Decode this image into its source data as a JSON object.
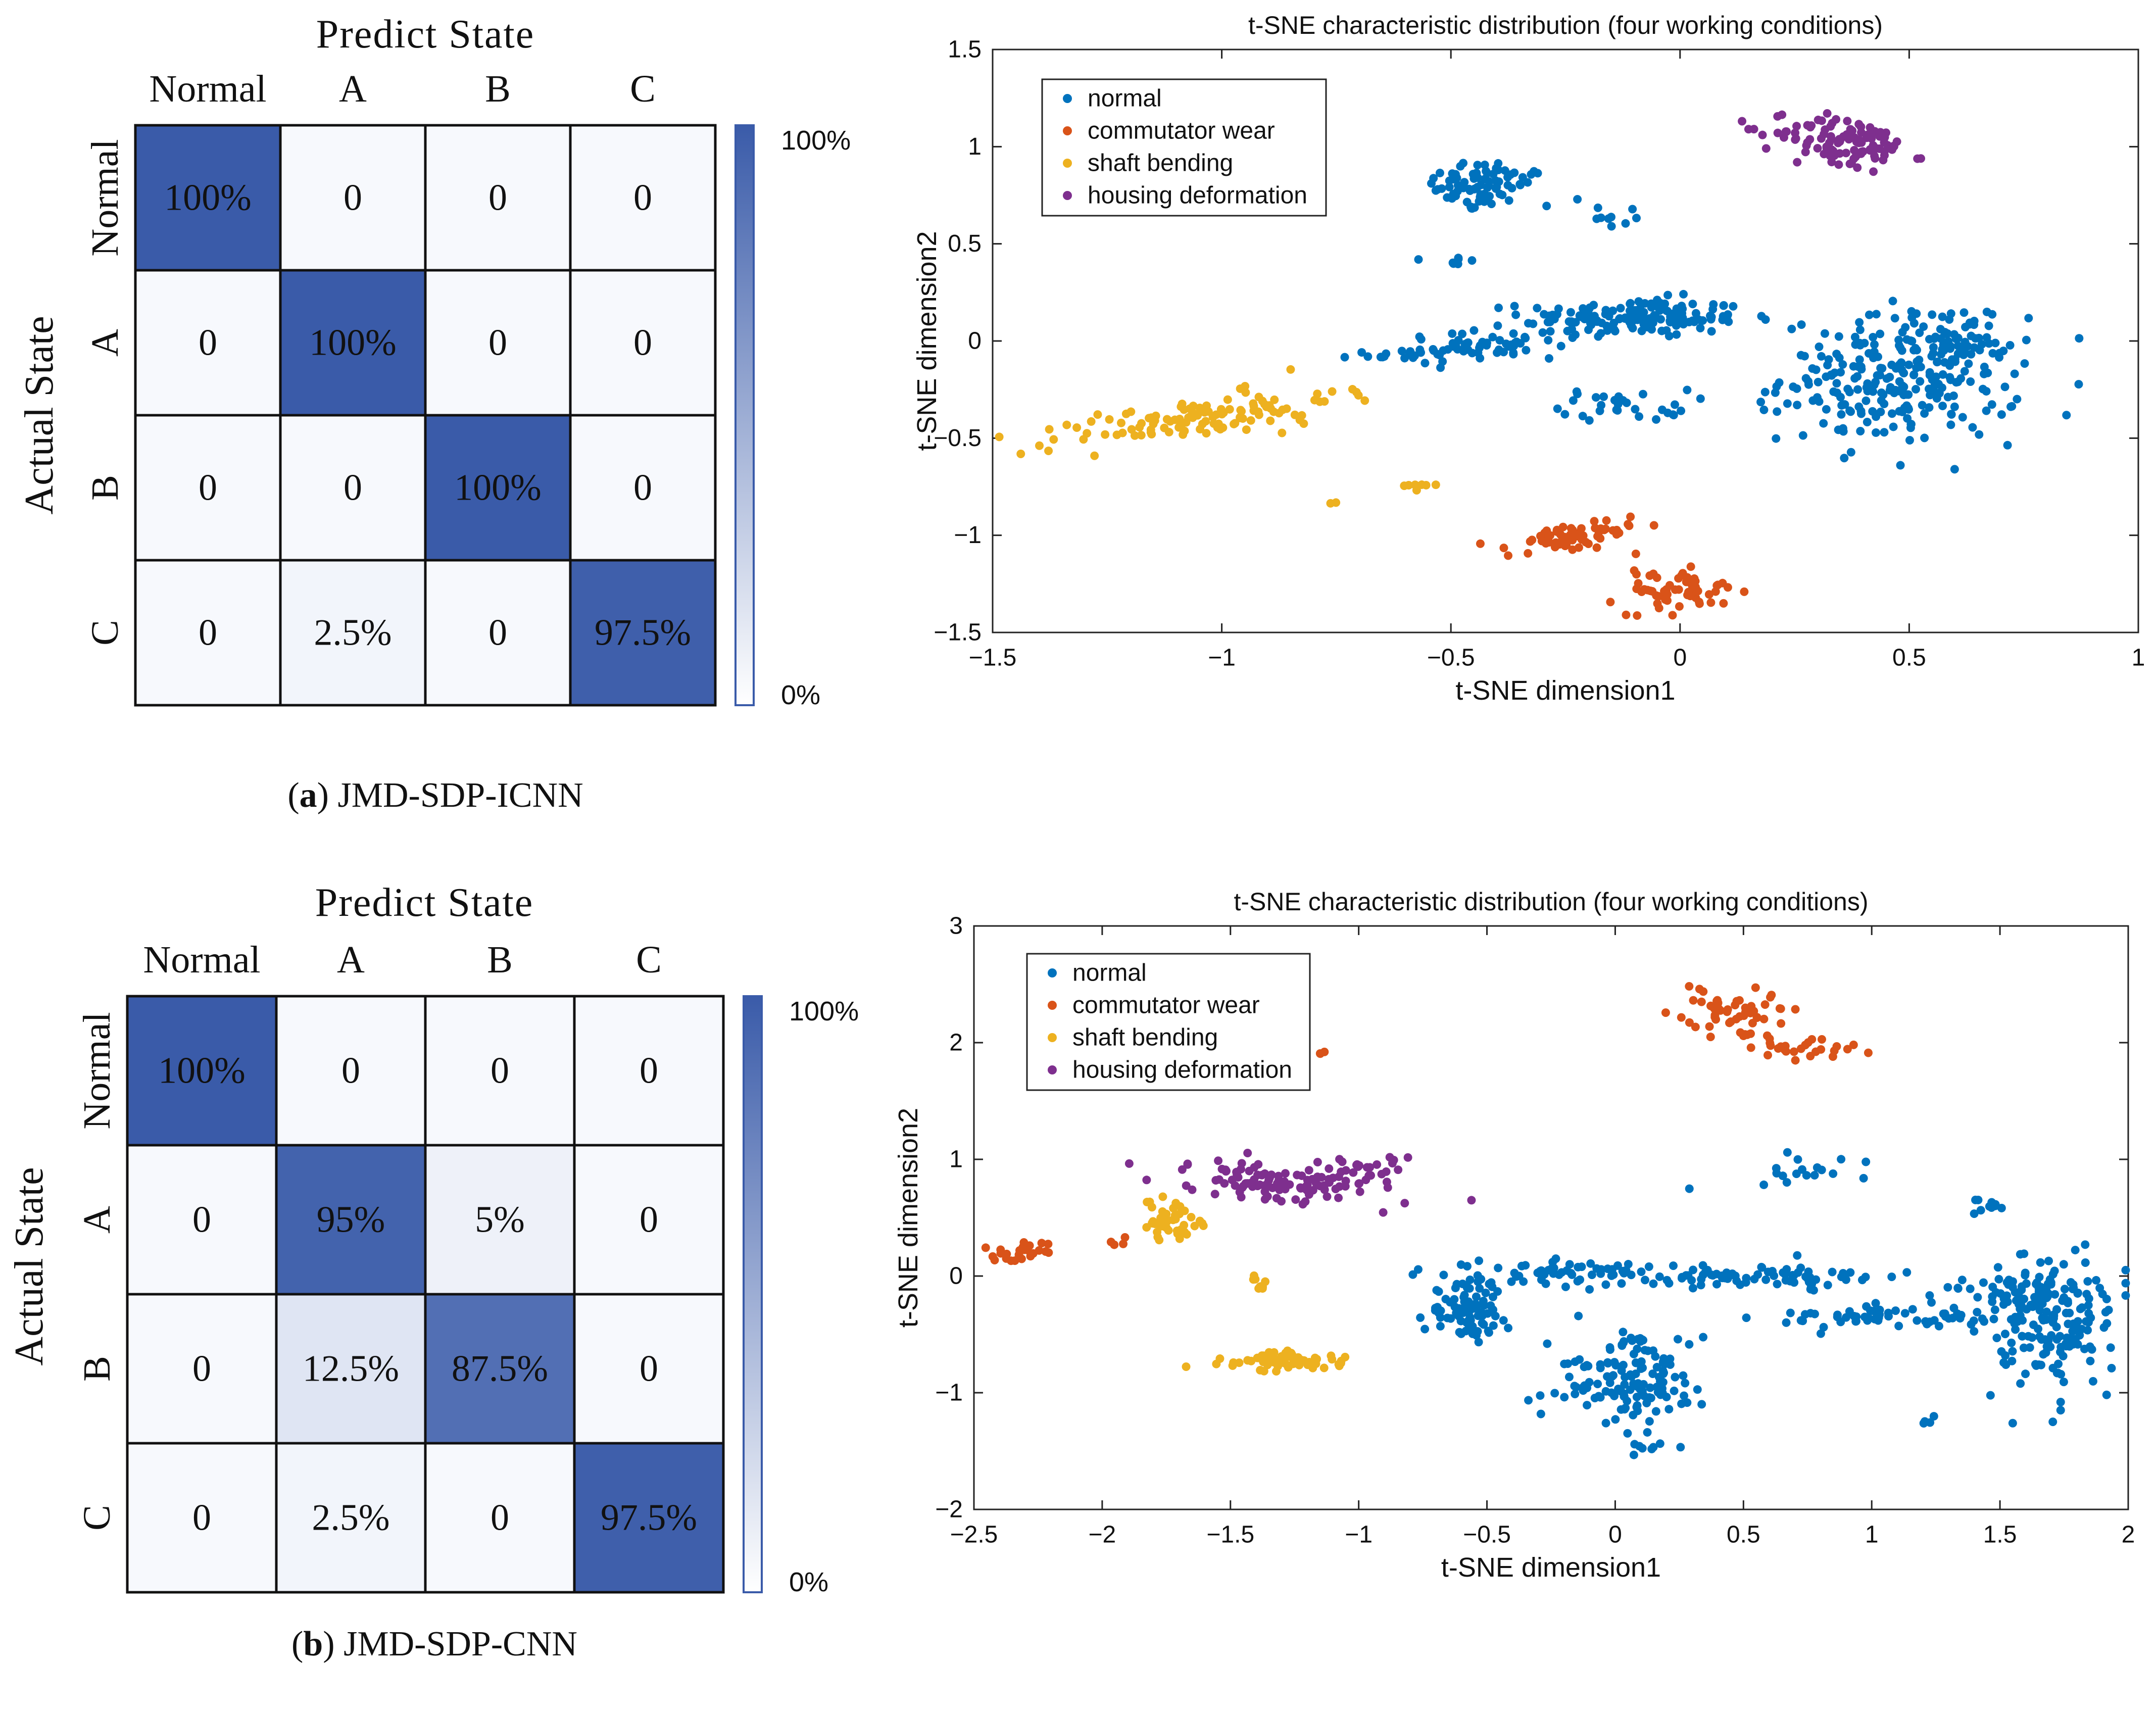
{
  "colors": {
    "normal": "#0072BD",
    "commutator_wear": "#D95319",
    "shaft_bending": "#EDB120",
    "housing_deformation": "#7E2F8E",
    "cm_full": "#3A5BA9",
    "cm_empty": "#F7F9FD"
  },
  "chart_data": [
    {
      "type": "heatmap",
      "title": "Predict State",
      "ylabel": "Actual State",
      "columns": [
        "Normal",
        "A",
        "B",
        "C"
      ],
      "rows": [
        "Normal",
        "A",
        "B",
        "C"
      ],
      "cells": [
        [
          "100%",
          "0",
          "0",
          "0"
        ],
        [
          "0",
          "100%",
          "0",
          "0"
        ],
        [
          "0",
          "0",
          "100%",
          "0"
        ],
        [
          "0",
          "2.5%",
          "0",
          "97.5%"
        ]
      ],
      "values": [
        [
          100,
          0,
          0,
          0
        ],
        [
          0,
          100,
          0,
          0
        ],
        [
          0,
          0,
          100,
          0
        ],
        [
          0,
          2.5,
          0,
          97.5
        ]
      ],
      "colorbar": {
        "max_label": "100%",
        "min_label": "0%"
      },
      "caption": {
        "letter": "a",
        "open": "(",
        "close": ")",
        "text": " JMD-SDP-ICNN"
      }
    },
    {
      "type": "scatter",
      "title": "t-SNE characteristic distribution (four working conditions)",
      "xlabel": "t-SNE dimension1",
      "ylabel": "t-SNE dimension2",
      "xlim": [
        -1.5,
        1
      ],
      "ylim": [
        -1.5,
        1.5
      ],
      "xticks": [
        -1.5,
        -1,
        -0.5,
        0,
        0.5,
        1
      ],
      "xtick_labels": [
        "−1.5",
        "−1",
        "−0.5",
        "0",
        "0.5",
        "1"
      ],
      "yticks": [
        -1.5,
        -1,
        -0.5,
        0,
        0.5,
        1,
        1.5
      ],
      "ytick_labels": [
        "−1.5",
        "−1",
        "−0.5",
        "0",
        "0.5",
        "1",
        "1.5"
      ],
      "legend": "top-left",
      "legend_labels": [
        "normal",
        "commutator wear",
        "shaft bending",
        "housing deformation"
      ],
      "clusters": [
        {
          "series": 0,
          "cx": -0.43,
          "cy": 0.8,
          "sx": 0.06,
          "sy": 0.07,
          "n": 80,
          "rot": -0.35
        },
        {
          "series": 0,
          "cx": -0.15,
          "cy": 0.65,
          "sx": 0.04,
          "sy": 0.03,
          "n": 10,
          "rot": -0.5
        },
        {
          "series": 0,
          "cx": -0.49,
          "cy": 0.41,
          "sx": 0.02,
          "sy": 0.02,
          "n": 8,
          "rot": 0
        },
        {
          "series": 0,
          "cx": -0.1,
          "cy": 0.12,
          "sx": 0.12,
          "sy": 0.05,
          "n": 160,
          "rot": 0
        },
        {
          "series": 0,
          "cx": -0.46,
          "cy": -0.03,
          "sx": 0.11,
          "sy": 0.04,
          "n": 70,
          "rot": 0.2
        },
        {
          "series": 0,
          "cx": -0.12,
          "cy": -0.33,
          "sx": 0.07,
          "sy": 0.04,
          "n": 30,
          "rot": 0
        },
        {
          "series": 0,
          "cx": 0.48,
          "cy": -0.2,
          "sx": 0.13,
          "sy": 0.16,
          "n": 260,
          "rot": 0
        },
        {
          "series": 0,
          "cx": 0.61,
          "cy": 0.02,
          "sx": 0.05,
          "sy": 0.08,
          "n": 40,
          "rot": 0
        },
        {
          "series": 1,
          "cx": -0.24,
          "cy": -1.02,
          "sx": 0.08,
          "sy": 0.04,
          "n": 60,
          "rot": 0.35
        },
        {
          "series": 1,
          "cx": 0.0,
          "cy": -1.28,
          "sx": 0.07,
          "sy": 0.05,
          "n": 60,
          "rot": 0.25
        },
        {
          "series": 2,
          "cx": -1.06,
          "cy": -0.4,
          "sx": 0.17,
          "sy": 0.05,
          "n": 120,
          "rot": 0.33
        },
        {
          "series": 2,
          "cx": -0.57,
          "cy": -0.74,
          "sx": 0.02,
          "sy": 0.02,
          "n": 8,
          "rot": 0
        },
        {
          "series": 2,
          "cx": -0.75,
          "cy": -0.83,
          "sx": 0.01,
          "sy": 0.005,
          "n": 2,
          "rot": 0
        },
        {
          "series": 3,
          "cx": 0.36,
          "cy": 1.02,
          "sx": 0.08,
          "sy": 0.06,
          "n": 110,
          "rot": -0.4
        }
      ]
    },
    {
      "type": "heatmap",
      "title": "Predict State",
      "ylabel": "Actual State",
      "columns": [
        "Normal",
        "A",
        "B",
        "C"
      ],
      "rows": [
        "Normal",
        "A",
        "B",
        "C"
      ],
      "cells": [
        [
          "100%",
          "0",
          "0",
          "0"
        ],
        [
          "0",
          "95%",
          "5%",
          "0"
        ],
        [
          "0",
          "12.5%",
          "87.5%",
          "0"
        ],
        [
          "0",
          "2.5%",
          "0",
          "97.5%"
        ]
      ],
      "values": [
        [
          100,
          0,
          0,
          0
        ],
        [
          0,
          95,
          5,
          0
        ],
        [
          0,
          12.5,
          87.5,
          0
        ],
        [
          0,
          2.5,
          0,
          97.5
        ]
      ],
      "colorbar": {
        "max_label": "100%",
        "min_label": "0%"
      },
      "caption": {
        "letter": "b",
        "open": "(",
        "close": ")",
        "text": " JMD-SDP-CNN"
      }
    },
    {
      "type": "scatter",
      "title": "t-SNE characteristic distribution (four working conditions)",
      "xlabel": "t-SNE dimension1",
      "ylabel": "t-SNE dimension2",
      "xlim": [
        -2.5,
        2
      ],
      "ylim": [
        -2,
        3
      ],
      "xticks": [
        -2.5,
        -2,
        -1.5,
        -1,
        -0.5,
        0,
        0.5,
        1,
        1.5,
        2
      ],
      "xtick_labels": [
        "−2.5",
        "−2",
        "−1.5",
        "−1",
        "−0.5",
        "0",
        "0.5",
        "1",
        "1.5",
        "2"
      ],
      "yticks": [
        -2,
        -1,
        0,
        1,
        2,
        3
      ],
      "ytick_labels": [
        "−2",
        "−1",
        "0",
        "1",
        "2",
        "3"
      ],
      "legend": "top-left",
      "legend_labels": [
        "normal",
        "commutator wear",
        "shaft bending",
        "housing deformation"
      ],
      "clusters": [
        {
          "series": 0,
          "cx": -0.58,
          "cy": -0.3,
          "sx": 0.08,
          "sy": 0.13,
          "n": 90,
          "rot": 0
        },
        {
          "series": 0,
          "cx": -0.2,
          "cy": 0.03,
          "sx": 0.25,
          "sy": 0.06,
          "n": 60,
          "rot": 0
        },
        {
          "series": 0,
          "cx": 0.05,
          "cy": -0.9,
          "sx": 0.15,
          "sy": 0.18,
          "n": 140,
          "rot": 0
        },
        {
          "series": 0,
          "cx": 0.1,
          "cy": -1.47,
          "sx": 0.06,
          "sy": 0.03,
          "n": 8,
          "rot": 0
        },
        {
          "series": 0,
          "cx": 0.55,
          "cy": 0.0,
          "sx": 0.25,
          "sy": 0.05,
          "n": 80,
          "rot": 0
        },
        {
          "series": 0,
          "cx": 1.1,
          "cy": -0.35,
          "sx": 0.25,
          "sy": 0.05,
          "n": 60,
          "rot": 0
        },
        {
          "series": 0,
          "cx": 1.72,
          "cy": -0.4,
          "sx": 0.12,
          "sy": 0.3,
          "n": 170,
          "rot": 0
        },
        {
          "series": 0,
          "cx": 1.6,
          "cy": -0.1,
          "sx": 0.12,
          "sy": 0.06,
          "n": 40,
          "rot": 0
        },
        {
          "series": 0,
          "cx": 0.75,
          "cy": 0.9,
          "sx": 0.18,
          "sy": 0.07,
          "n": 18,
          "rot": 0
        },
        {
          "series": 0,
          "cx": 1.45,
          "cy": 0.58,
          "sx": 0.04,
          "sy": 0.03,
          "n": 10,
          "rot": 0
        },
        {
          "series": 0,
          "cx": 1.23,
          "cy": -1.22,
          "sx": 0.02,
          "sy": 0.03,
          "n": 4,
          "rot": 0
        },
        {
          "series": 1,
          "cx": 0.45,
          "cy": 2.25,
          "sx": 0.12,
          "sy": 0.12,
          "n": 55,
          "rot": -0.4
        },
        {
          "series": 1,
          "cx": 0.75,
          "cy": 1.95,
          "sx": 0.12,
          "sy": 0.05,
          "n": 25,
          "rot": 0
        },
        {
          "series": 1,
          "cx": -2.3,
          "cy": 0.2,
          "sx": 0.07,
          "sy": 0.04,
          "n": 25,
          "rot": 0.25
        },
        {
          "series": 1,
          "cx": -1.95,
          "cy": 0.28,
          "sx": 0.03,
          "sy": 0.02,
          "n": 4,
          "rot": 0
        },
        {
          "series": 1,
          "cx": -1.15,
          "cy": 1.9,
          "sx": 0.01,
          "sy": 0.02,
          "n": 3,
          "rot": 0
        },
        {
          "series": 2,
          "cx": -1.75,
          "cy": 0.47,
          "sx": 0.06,
          "sy": 0.09,
          "n": 45,
          "rot": 0
        },
        {
          "series": 2,
          "cx": -1.4,
          "cy": -0.07,
          "sx": 0.02,
          "sy": 0.03,
          "n": 10,
          "rot": 0
        },
        {
          "series": 2,
          "cx": -1.27,
          "cy": -0.72,
          "sx": 0.12,
          "sy": 0.04,
          "n": 70,
          "rot": 0
        },
        {
          "series": 3,
          "cx": -1.3,
          "cy": 0.8,
          "sx": 0.2,
          "sy": 0.08,
          "n": 110,
          "rot": -0.25
        },
        {
          "series": 3,
          "cx": -0.95,
          "cy": 0.9,
          "sx": 0.07,
          "sy": 0.07,
          "n": 20,
          "rot": 0
        }
      ]
    }
  ]
}
